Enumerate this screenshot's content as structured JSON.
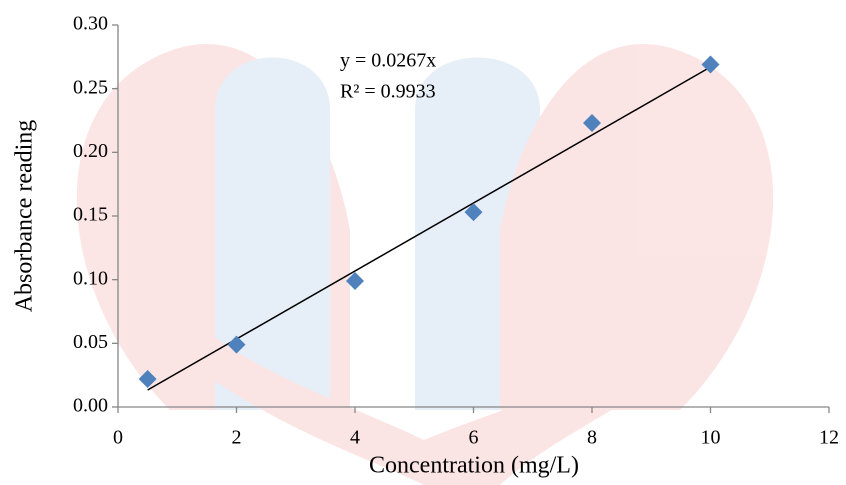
{
  "chart_data": {
    "type": "scatter",
    "x_label": "Concentration (mg/L)",
    "y_label": "Absorbance reading",
    "x": [
      0.5,
      2,
      4,
      6,
      8,
      10
    ],
    "values": [
      0.022,
      0.049,
      0.099,
      0.153,
      0.223,
      0.269
    ],
    "color": "#4f81bd",
    "xlim": [
      0,
      12
    ],
    "xticks": [
      0,
      2,
      4,
      6,
      8,
      10,
      12
    ],
    "ylim": [
      0,
      0.3
    ],
    "yticks": [
      {
        "value": 0,
        "label": "0.00"
      },
      0.05,
      {
        "value": 0.1,
        "label": "0.10"
      },
      0.15,
      {
        "value": 0.2,
        "label": "0.20"
      },
      0.25,
      {
        "value": 0.3,
        "label": "0.30"
      }
    ],
    "trendline": {
      "slope": 0.0267,
      "equation": "y = 0.0267x",
      "r_squared": "R² = 0.9933",
      "color": "#000000"
    }
  }
}
